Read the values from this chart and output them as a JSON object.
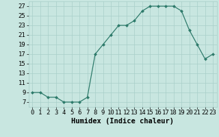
{
  "x": [
    0,
    1,
    2,
    3,
    4,
    5,
    6,
    7,
    8,
    9,
    10,
    11,
    12,
    13,
    14,
    15,
    16,
    17,
    18,
    19,
    20,
    21,
    22,
    23
  ],
  "y": [
    9,
    9,
    8,
    8,
    7,
    7,
    7,
    8,
    17,
    19,
    21,
    23,
    23,
    24,
    26,
    27,
    27,
    27,
    27,
    26,
    22,
    19,
    16,
    17
  ],
  "line_color": "#2d7a6a",
  "marker_color": "#2d7a6a",
  "bg_color": "#c8e6e0",
  "grid_color": "#a8cec8",
  "xlabel": "Humidex (Indice chaleur)",
  "xlim": [
    -0.5,
    23.5
  ],
  "ylim": [
    6,
    28
  ],
  "yticks": [
    7,
    9,
    11,
    13,
    15,
    17,
    19,
    21,
    23,
    25,
    27
  ],
  "xticks": [
    0,
    1,
    2,
    3,
    4,
    5,
    6,
    7,
    8,
    9,
    10,
    11,
    12,
    13,
    14,
    15,
    16,
    17,
    18,
    19,
    20,
    21,
    22,
    23
  ],
  "tick_fontsize": 6.5,
  "xlabel_fontsize": 7.5
}
